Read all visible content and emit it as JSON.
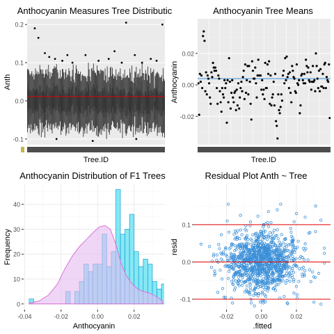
{
  "colors": {
    "panel_bg": "#ebebeb",
    "grid_major": "#ffffff",
    "grid_minor": "#f5f5f5",
    "grid_light": "#ebebeb",
    "refline_red": "#e00000",
    "refline_blue": "#3a8fd8",
    "point_dark": "#000000",
    "box_dark": "#333333",
    "hist_fill": "#5ee0f0",
    "hist_stroke": "#1a9fd4",
    "density_fill": "#e4bbf0",
    "density_stroke": "#da70d6",
    "resid_point": "#3a8fd8",
    "axis_text": "#4d4d4d",
    "title_text": "#000000"
  },
  "chart_data": [
    {
      "type": "box",
      "title": "Anthocyanin Measures Tree Distributic",
      "xlabel": "Tree.ID",
      "ylabel": "Anth",
      "ylim": [
        -0.115,
        0.215
      ],
      "yticks": [
        "-0.1",
        "0.0",
        "0.1",
        "0.2"
      ],
      "ytick_values": [
        -0.1,
        0.0,
        0.1,
        0.2
      ],
      "reference_line": 0.0,
      "reference_color": "red",
      "n_trees": 190,
      "whisker_range_typical": [
        -0.09,
        0.1
      ],
      "outliers": [
        {
          "tree": 10,
          "y": 0.19
        },
        {
          "tree": 15,
          "y": 0.165
        },
        {
          "tree": 24,
          "y": 0.125
        },
        {
          "tree": 30,
          "y": 0.115
        },
        {
          "tree": 38,
          "y": 0.11
        },
        {
          "tree": 48,
          "y": 0.105
        },
        {
          "tree": 55,
          "y": 0.12
        },
        {
          "tree": 62,
          "y": 0.1
        },
        {
          "tree": 80,
          "y": 0.12
        },
        {
          "tree": 98,
          "y": 0.105
        },
        {
          "tree": 112,
          "y": 0.11
        },
        {
          "tree": 120,
          "y": 0.13
        },
        {
          "tree": 130,
          "y": 0.1
        },
        {
          "tree": 136,
          "y": 0.205
        },
        {
          "tree": 148,
          "y": 0.12
        },
        {
          "tree": 158,
          "y": 0.1
        },
        {
          "tree": 170,
          "y": 0.11
        },
        {
          "tree": 178,
          "y": 0.105
        },
        {
          "tree": 186,
          "y": 0.2
        },
        {
          "tree": 40,
          "y": -0.1
        },
        {
          "tree": 90,
          "y": -0.105
        },
        {
          "tree": 150,
          "y": -0.1
        }
      ]
    },
    {
      "type": "scatter",
      "title": "Anthocyanin Tree Means",
      "xlabel": "Tree.ID",
      "ylabel": "Anthocyanin",
      "ylim": [
        -0.038,
        0.042
      ],
      "yticks": [
        "-0.02",
        "0.00",
        "0.02"
      ],
      "ytick_values": [
        -0.02,
        0.0,
        0.02
      ],
      "reference_line": 0.0,
      "reference_color": "blue",
      "y": [
        0.001,
        -0.019,
        0.007,
        0.002,
        0.006,
        -0.002,
        0.031,
        0.034,
        0.028,
        -0.004,
        0.008,
        -0.006,
        0.006,
        0.004,
        0.001,
        -0.008,
        -0.012,
        0.008,
        0.005,
        0.014,
        0.011,
        0.009,
        0.011,
        0.009,
        -0.002,
        -0.012,
        0.006,
        0.004,
        -0.004,
        -0.011,
        -0.017,
        -0.002,
        -0.006,
        -0.008,
        0.003,
        -0.002,
        0.001,
        -0.024,
        0.003,
        -0.011,
        0.017,
        0.002,
        -0.015,
        -0.005,
        0.003,
        -0.008,
        -0.011,
        -0.005,
        -0.004,
        -0.016,
        -0.003,
        -0.013,
        0.001,
        -0.015,
        -0.008,
        -0.002,
        0.002,
        -0.004,
        0.005,
        0.009,
        -0.009,
        0.013,
        -0.005,
        0.003,
        0.012,
        -0.006,
        0.012,
        0.002,
        -0.012,
        -0.022,
        0.015,
        0.009,
        0.004,
        0.004,
        0.011,
        0.001,
        -0.008,
        0.006,
        0.016,
        0.006,
        0.006,
        0.006,
        -0.003,
        0.003,
        -0.006,
        -0.003,
        -0.009,
        0.014,
        -0.002,
        -0.002,
        0.013,
        0.007,
        0.015,
        -0.012,
        0.006,
        -0.013,
        -0.008,
        -0.006,
        0.002,
        -0.013,
        0.007,
        -0.023,
        -0.026,
        -0.034,
        -0.006,
        -0.016,
        -0.018,
        -0.014,
        -0.006,
        -0.01,
        0.006,
        0.009,
        0.001,
        0.017,
        0.003,
        0.018,
        0.005,
        0.007,
        -0.002,
        0.008,
        -0.005,
        -0.011,
        0.012,
        0.009,
        0.005,
        0.004,
        -0.004,
        -0.005,
        0.013,
        0.001,
        0.0,
        0.003,
        -0.018,
        -0.013,
        0.006,
        0.007,
        0.003,
        0.001,
        0.007,
        0.001,
        0.016,
        0.012,
        0.008,
        0.011,
        0.003,
        0.002,
        0.008,
        -0.003,
        0.002,
        0.012,
        0.002,
        0.003,
        -0.004,
        0.02,
        0.012,
        0.004,
        -0.002,
        0.009,
        -0.004,
        0.01,
        -0.001,
        -0.001,
        0.007,
        -0.002,
        0.013,
        0.014,
        -0.002,
        0.005,
        0.003,
        0.002,
        0.013,
        -0.021
      ]
    },
    {
      "type": "histogram",
      "title": "Anthocyanin Distribution of F1 Trees",
      "xlabel": "Anthocyanin",
      "ylabel": "Frequency",
      "xlim": [
        -0.0405,
        0.0365
      ],
      "ylim": [
        -2.3,
        48.3
      ],
      "xticks": [
        "-0.04",
        "-0.02",
        "0.00",
        "0.02"
      ],
      "xtick_values": [
        -0.04,
        -0.02,
        0.0,
        0.02
      ],
      "yticks": [
        "0",
        "10",
        "20",
        "30",
        "40"
      ],
      "ytick_values": [
        0,
        10,
        20,
        30,
        40
      ],
      "bin_start": -0.0375,
      "bin_width": 0.0025,
      "counts": [
        2,
        0,
        0,
        0,
        0,
        0,
        0,
        0,
        5,
        0,
        5,
        9,
        16,
        13,
        16,
        16,
        28,
        15,
        21,
        46,
        28,
        30,
        36,
        21,
        15,
        18,
        16,
        9,
        6,
        8,
        7,
        4,
        2,
        5,
        2
      ],
      "density_curve": [
        [
          -0.0375,
          0.3
        ],
        [
          -0.032,
          1.2
        ],
        [
          -0.027,
          3.5
        ],
        [
          -0.022,
          8
        ],
        [
          -0.018,
          14
        ],
        [
          -0.014,
          19
        ],
        [
          -0.01,
          23
        ],
        [
          -0.006,
          26
        ],
        [
          -0.002,
          29
        ],
        [
          0.001,
          31
        ],
        [
          0.004,
          31.5
        ],
        [
          0.007,
          30
        ],
        [
          0.01,
          24
        ],
        [
          0.013,
          16
        ],
        [
          0.016,
          11
        ],
        [
          0.019,
          8
        ],
        [
          0.022,
          6
        ],
        [
          0.025,
          5
        ],
        [
          0.028,
          4.5
        ],
        [
          0.031,
          3.5
        ],
        [
          0.034,
          2
        ],
        [
          0.0355,
          1.2
        ]
      ]
    },
    {
      "type": "scatter",
      "title": "Residual Plot Anth ~ Tree",
      "xlabel": ".fitted",
      "ylabel": "resid",
      "xlim": [
        -0.0385,
        0.0395
      ],
      "ylim": [
        -0.128,
        0.21
      ],
      "xticks": [
        "-0.02",
        "0.00",
        "0.02"
      ],
      "xtick_values": [
        -0.02,
        0.0,
        0.02
      ],
      "yticks": [
        "-0.1",
        "0.0",
        "0.1"
      ],
      "ytick_values": [
        -0.1,
        0.0,
        0.1
      ],
      "reference_lines": [
        -0.1,
        0.0,
        0.1
      ],
      "reference_color": "red",
      "fitted_range": [
        -0.036,
        0.036
      ],
      "resid_spread_sd": 0.04,
      "extreme_points": [
        {
          "x": -0.019,
          "y": 0.155
        },
        {
          "x": 0.004,
          "y": 0.135
        },
        {
          "x": -0.012,
          "y": 0.125
        },
        {
          "x": 0.011,
          "y": 0.155
        },
        {
          "x": 0.009,
          "y": 0.14
        },
        {
          "x": 0.031,
          "y": 0.15
        },
        {
          "x": 0.02,
          "y": 0.13
        },
        {
          "x": 0.034,
          "y": 0.112
        },
        {
          "x": 0.025,
          "y": 0.12
        },
        {
          "x": -0.002,
          "y": 0.123
        },
        {
          "x": 0.034,
          "y": -0.113
        },
        {
          "x": -0.004,
          "y": -0.118
        },
        {
          "x": 0.015,
          "y": -0.112
        },
        {
          "x": 0.03,
          "y": -0.108
        }
      ]
    }
  ]
}
